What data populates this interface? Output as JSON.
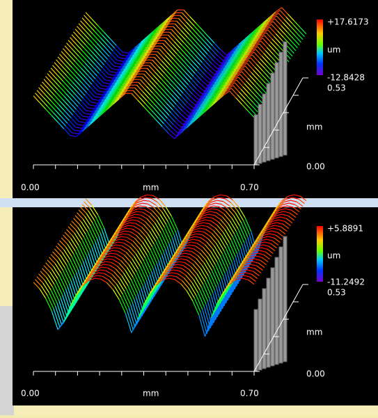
{
  "panels": [
    {
      "z_max": "+17.6173",
      "z_unit": "um",
      "z_min": "-12.8428",
      "y_max": "0.53",
      "y_unit": "mm",
      "y_min": "0.00",
      "x_min": "0.00",
      "x_unit": "mm",
      "x_max": "0.70"
    },
    {
      "z_max": "+5.8891",
      "z_unit": "um",
      "z_min": "-11.2492",
      "y_max": "0.53",
      "y_unit": "mm",
      "y_min": "0.00",
      "x_min": "0.00",
      "x_unit": "mm",
      "x_max": "0.70"
    }
  ]
}
